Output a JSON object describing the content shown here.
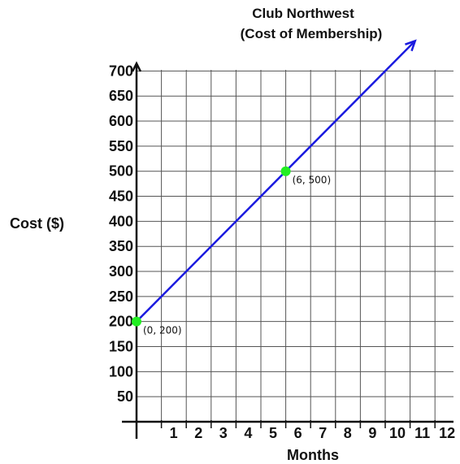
{
  "chart_data": {
    "type": "line",
    "title": "Club Northwest",
    "subtitle": "(Cost of Membership)",
    "xlabel": "Months",
    "ylabel": "Cost ($)",
    "xlim": [
      0,
      12
    ],
    "ylim": [
      0,
      700
    ],
    "x_ticks": [
      1,
      2,
      3,
      4,
      5,
      6,
      7,
      8,
      9,
      10,
      11,
      12
    ],
    "y_ticks": [
      50,
      100,
      150,
      200,
      250,
      300,
      350,
      400,
      450,
      500,
      550,
      600,
      650,
      700
    ],
    "grid": true,
    "series": [
      {
        "x": [
          0,
          11.2
        ],
        "y": [
          200,
          760
        ],
        "color": "#1a1adf"
      }
    ],
    "points": [
      {
        "x": 0,
        "y": 200,
        "label": "(0, 200)",
        "color": "#22ee22"
      },
      {
        "x": 6,
        "y": 500,
        "label": "(6, 500)",
        "color": "#22ee22"
      }
    ]
  }
}
